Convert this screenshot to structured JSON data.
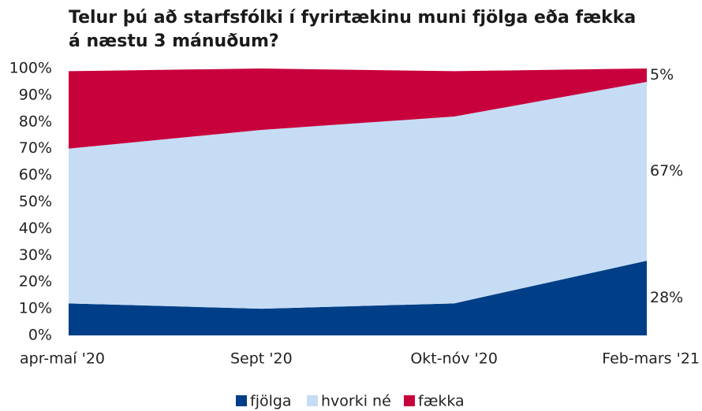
{
  "chart_data": {
    "type": "stacked_area",
    "title": "Telur þú að starfsfólki í fyrirtækinu muni fjölga eða fækka á næstu 3 mánuðum?",
    "categories": [
      "apr-maí '20",
      "Sept '20",
      "Okt-nóv '20",
      "Feb-mars '21"
    ],
    "series": [
      {
        "name": "fjölga",
        "color": "#003f87",
        "values": [
          12,
          10,
          12,
          28
        ],
        "value_labels": [
          null,
          null,
          null,
          "28%"
        ]
      },
      {
        "name": "hvorki né",
        "color": "#c5dcf4",
        "values": [
          58,
          67,
          70,
          67
        ],
        "value_labels": [
          null,
          null,
          null,
          "67%"
        ]
      },
      {
        "name": "fækka",
        "color": "#c8003c",
        "values": [
          29,
          23,
          17,
          5
        ],
        "value_labels": [
          null,
          null,
          null,
          "5%"
        ]
      }
    ],
    "ylim": [
      0,
      100
    ],
    "yticks": [
      {
        "value": 0,
        "label": "0%"
      },
      {
        "value": 10,
        "label": "10%"
      },
      {
        "value": 20,
        "label": "20%"
      },
      {
        "value": 30,
        "label": "30%"
      },
      {
        "value": 40,
        "label": "40%"
      },
      {
        "value": 50,
        "label": "50%"
      },
      {
        "value": 60,
        "label": "60%"
      },
      {
        "value": 70,
        "label": "70%"
      },
      {
        "value": 80,
        "label": "80%"
      },
      {
        "value": 90,
        "label": "90%"
      },
      {
        "value": 100,
        "label": "100%"
      }
    ],
    "legend": "bottom"
  }
}
